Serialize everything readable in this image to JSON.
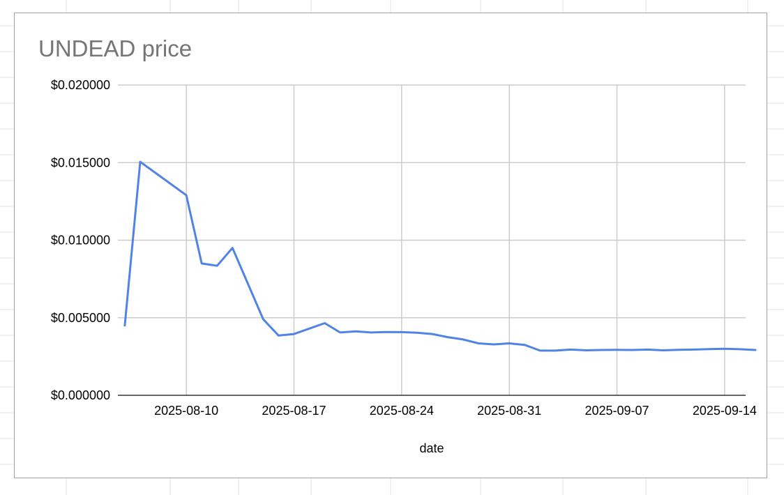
{
  "chart_data": {
    "type": "line",
    "title": "UNDEAD price",
    "xlabel": "date",
    "ylabel": "",
    "ylim": [
      0,
      0.02
    ],
    "y_ticks": [
      0,
      0.005,
      0.01,
      0.015,
      0.02
    ],
    "y_tick_labels": [
      "$0.000000",
      "$0.005000",
      "$0.010000",
      "$0.015000",
      "$0.020000"
    ],
    "xlim": [
      "2025-08-06",
      "2025-09-16"
    ],
    "x_ticks": [
      "2025-08-10",
      "2025-08-17",
      "2025-08-24",
      "2025-08-31",
      "2025-09-07",
      "2025-09-14"
    ],
    "grid": true,
    "legend": "none",
    "series": [
      {
        "color": "#5083e6",
        "points": [
          {
            "x": "2025-08-06",
            "y": 0.0045
          },
          {
            "x": "2025-08-07",
            "y": 0.01505
          },
          {
            "x": "2025-08-10",
            "y": 0.0129
          },
          {
            "x": "2025-08-11",
            "y": 0.0085
          },
          {
            "x": "2025-08-12",
            "y": 0.00835
          },
          {
            "x": "2025-08-13",
            "y": 0.0095
          },
          {
            "x": "2025-08-15",
            "y": 0.0049
          },
          {
            "x": "2025-08-16",
            "y": 0.00385
          },
          {
            "x": "2025-08-17",
            "y": 0.00395
          },
          {
            "x": "2025-08-19",
            "y": 0.00465
          },
          {
            "x": "2025-08-20",
            "y": 0.00405
          },
          {
            "x": "2025-08-21",
            "y": 0.00412
          },
          {
            "x": "2025-08-22",
            "y": 0.00405
          },
          {
            "x": "2025-08-23",
            "y": 0.00408
          },
          {
            "x": "2025-08-24",
            "y": 0.00407
          },
          {
            "x": "2025-08-25",
            "y": 0.00403
          },
          {
            "x": "2025-08-26",
            "y": 0.00395
          },
          {
            "x": "2025-08-27",
            "y": 0.00375
          },
          {
            "x": "2025-08-28",
            "y": 0.0036
          },
          {
            "x": "2025-08-29",
            "y": 0.00335
          },
          {
            "x": "2025-08-30",
            "y": 0.00328
          },
          {
            "x": "2025-08-31",
            "y": 0.00335
          },
          {
            "x": "2025-09-01",
            "y": 0.00325
          },
          {
            "x": "2025-09-02",
            "y": 0.00288
          },
          {
            "x": "2025-09-03",
            "y": 0.00288
          },
          {
            "x": "2025-09-04",
            "y": 0.00295
          },
          {
            "x": "2025-09-05",
            "y": 0.0029
          },
          {
            "x": "2025-09-06",
            "y": 0.00292
          },
          {
            "x": "2025-09-07",
            "y": 0.00293
          },
          {
            "x": "2025-09-08",
            "y": 0.00292
          },
          {
            "x": "2025-09-09",
            "y": 0.00295
          },
          {
            "x": "2025-09-10",
            "y": 0.0029
          },
          {
            "x": "2025-09-11",
            "y": 0.00293
          },
          {
            "x": "2025-09-12",
            "y": 0.00295
          },
          {
            "x": "2025-09-13",
            "y": 0.00298
          },
          {
            "x": "2025-09-14",
            "y": 0.003
          },
          {
            "x": "2025-09-15",
            "y": 0.00297
          },
          {
            "x": "2025-09-16",
            "y": 0.00292
          }
        ]
      }
    ]
  }
}
